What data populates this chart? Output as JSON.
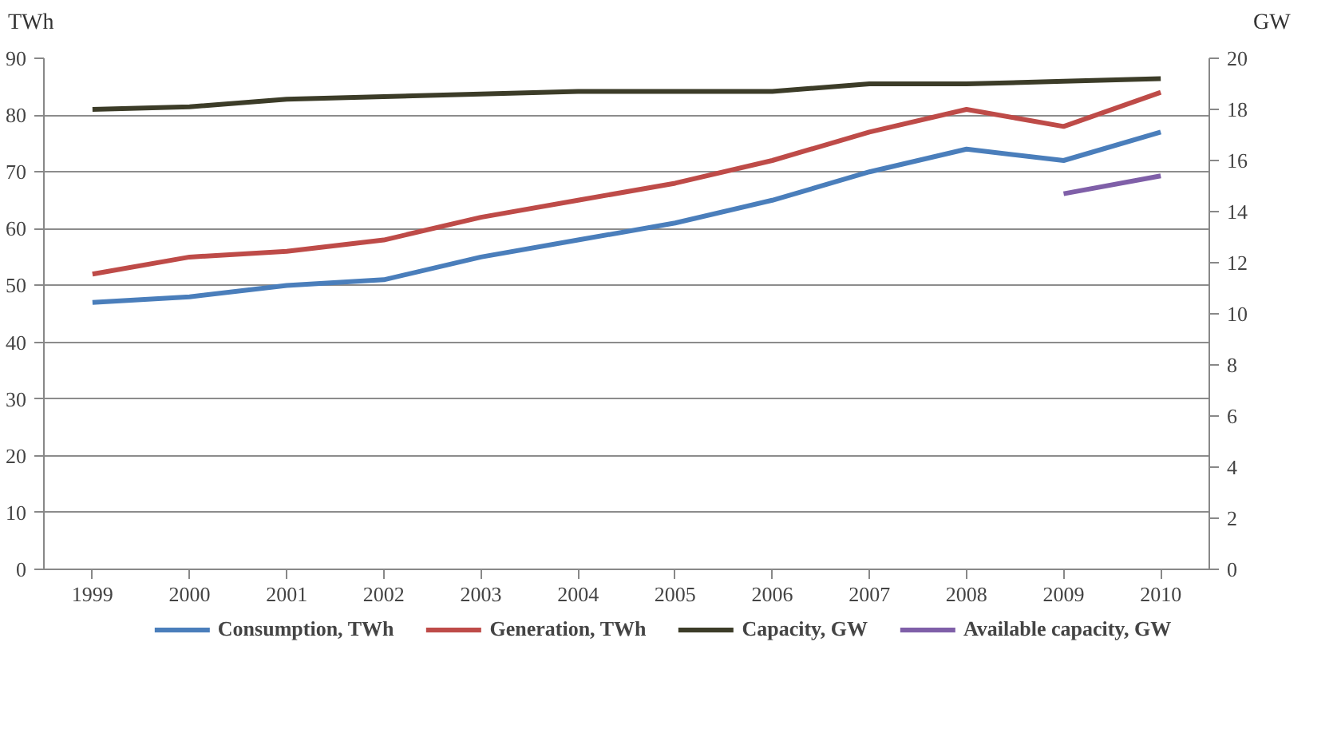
{
  "chart_data": {
    "type": "line",
    "ylabel": "TWh",
    "y2label": "GW",
    "categories": [
      "1999",
      "2000",
      "2001",
      "2002",
      "2003",
      "2004",
      "2005",
      "2006",
      "2007",
      "2008",
      "2009",
      "2010"
    ],
    "series": [
      {
        "name": "Consumption, TWh",
        "color": "#4a7ebb",
        "values": [
          47,
          48,
          50,
          51,
          55,
          58,
          61,
          65,
          70,
          74,
          72,
          77
        ]
      },
      {
        "name": "Generation, TWh",
        "color": "#be4b48",
        "values": [
          52,
          55,
          56,
          58,
          62,
          65,
          68,
          72,
          77,
          81,
          78,
          84
        ]
      },
      {
        "name": "Capacity, GW",
        "color": "#3c3c28",
        "axis": "y2",
        "values": [
          18.0,
          18.1,
          18.4,
          18.5,
          18.6,
          18.7,
          18.7,
          18.7,
          19.0,
          19.0,
          19.1,
          19.2
        ]
      },
      {
        "name": "Available capacity, GW",
        "color": "#7f5fa8",
        "axis": "y2",
        "values": [
          null,
          null,
          null,
          null,
          null,
          null,
          null,
          null,
          null,
          null,
          14.7,
          15.4
        ]
      }
    ],
    "ylim": [
      0,
      90
    ],
    "yticks": [
      0,
      10,
      20,
      30,
      40,
      50,
      60,
      70,
      80,
      90
    ],
    "y2lim": [
      0,
      20
    ],
    "y2ticks": [
      0,
      2,
      4,
      6,
      8,
      10,
      12,
      14,
      16,
      18,
      20
    ],
    "grid": "y",
    "legend": "bottom",
    "marker": "none",
    "line_style": "solid"
  }
}
